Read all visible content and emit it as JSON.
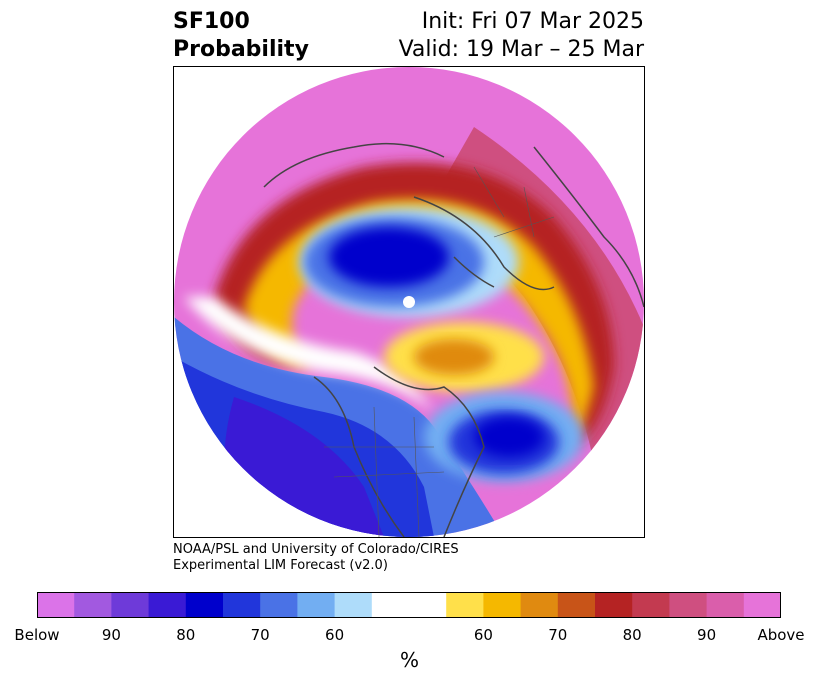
{
  "title": {
    "line1": "SF100",
    "line2": "Probability",
    "init": "Init: Fri 07 Mar 2025",
    "valid": "Valid: 19 Mar – 25 Mar"
  },
  "credit": {
    "line1": "NOAA/PSL and University of Colorado/CIRES",
    "line2": "Experimental LIM Forecast (v2.0)"
  },
  "colorbar": {
    "unit": "%",
    "colors": [
      "#db73e8",
      "#a259e0",
      "#6e3ad9",
      "#3a1ad5",
      "#0000cc",
      "#2136db",
      "#4a72e6",
      "#72aef2",
      "#aedcfa",
      "#ffffff",
      "#ffffff",
      "#ffe04a",
      "#f5b800",
      "#e08a10",
      "#c85418",
      "#b52323",
      "#c33a50",
      "#cf4f80",
      "#da5eab",
      "#e673d9"
    ],
    "ticks": [
      {
        "label": "Below",
        "index": 0
      },
      {
        "label": "90",
        "index": 2
      },
      {
        "label": "80",
        "index": 4
      },
      {
        "label": "70",
        "index": 6
      },
      {
        "label": "60",
        "index": 8
      },
      {
        "label": "60",
        "index": 12
      },
      {
        "label": "70",
        "index": 14
      },
      {
        "label": "80",
        "index": 16
      },
      {
        "label": "90",
        "index": 18
      },
      {
        "label": "Above",
        "index": 20
      }
    ]
  },
  "map": {
    "projection": "north-polar-stereographic",
    "field": "SF100 probability"
  }
}
